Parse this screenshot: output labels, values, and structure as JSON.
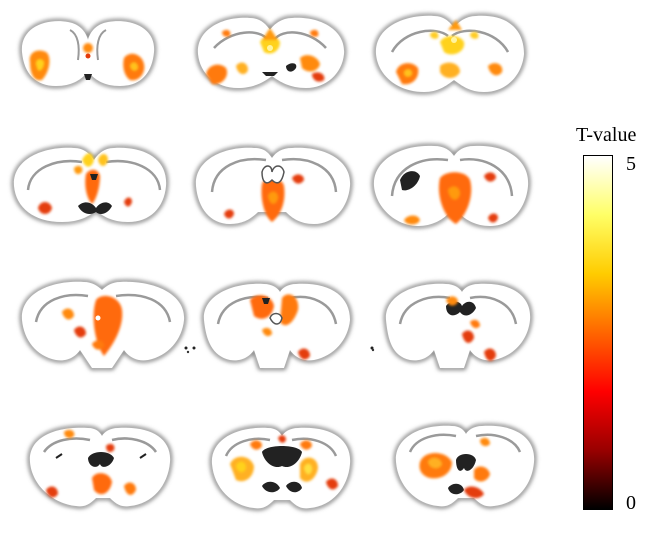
{
  "colorbar": {
    "title": "T-value",
    "max_label": "5",
    "min_label": "0",
    "gradient": [
      "#ffffff",
      "#ffff66",
      "#ffcc00",
      "#ff6600",
      "#ff0000",
      "#990000",
      "#000000"
    ]
  },
  "colors": {
    "tissue": "#ffffff",
    "tissue_shade": "#7a7a7a",
    "ventricle": "#111111",
    "activation_high": "#ffdd33",
    "activation_mid": "#ff8a10",
    "activation_low": "#e43c0a"
  },
  "slices": {
    "rows": 4,
    "columns": 3,
    "count": 12
  }
}
